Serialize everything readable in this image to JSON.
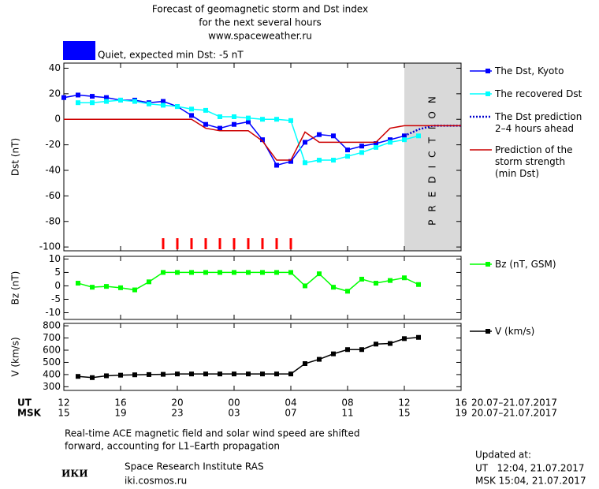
{
  "header": {
    "title_lines": [
      "Forecast of geomagnetic storm and Dst index",
      "for the next several hours",
      "www.spaceweather.ru"
    ],
    "status": {
      "text": "Quiet, expected min Dst: -5 nT",
      "color": "#0000ff"
    }
  },
  "time_axis": {
    "xlim": [
      0,
      28
    ],
    "ut_label": "UT",
    "ut_ticks": [
      {
        "value": 0,
        "label": "12"
      },
      {
        "value": 4,
        "label": "16"
      },
      {
        "value": 8,
        "label": "20"
      },
      {
        "value": 12,
        "label": "00"
      },
      {
        "value": 16,
        "label": "04"
      },
      {
        "value": 20,
        "label": "08"
      },
      {
        "value": 24,
        "label": "12"
      },
      {
        "value": 28,
        "label": "16"
      }
    ],
    "msk_label": "MSK",
    "msk_ticks": [
      {
        "value": 0,
        "label": "15"
      },
      {
        "value": 4,
        "label": "19"
      },
      {
        "value": 8,
        "label": "23"
      },
      {
        "value": 12,
        "label": "03"
      },
      {
        "value": 16,
        "label": "07"
      },
      {
        "value": 20,
        "label": "11"
      },
      {
        "value": 24,
        "label": "15"
      },
      {
        "value": 28,
        "label": "19"
      }
    ],
    "date": "20.07–21.07.2017"
  },
  "chart_data": [
    {
      "type": "line",
      "ylabel": "Dst (nT)",
      "ylim": [
        -103,
        44
      ],
      "yticks": [
        40,
        20,
        0,
        -20,
        -40,
        -60,
        -80,
        -100
      ],
      "x": [
        0,
        1,
        2,
        3,
        4,
        5,
        6,
        7,
        8,
        9,
        10,
        11,
        12,
        13,
        14,
        15,
        16,
        17,
        18,
        19,
        20,
        21,
        22,
        23,
        24,
        25,
        26,
        27,
        28
      ],
      "prediction_zone": {
        "label": "PREDICTION",
        "x": [
          24,
          28
        ],
        "color": "#d9d9d9"
      },
      "alert_x": [
        7,
        8,
        9,
        10,
        11,
        12,
        13,
        14,
        15,
        16
      ],
      "alert_color": "#ff0000",
      "series": [
        {
          "name": "The Dst, Kyoto",
          "color": "#0000ff",
          "marker": "square",
          "line_style": "solid",
          "values": [
            17,
            19,
            18,
            17,
            15,
            15,
            13,
            14,
            10,
            3,
            -4,
            -7,
            -4,
            -2,
            -16,
            -36,
            -33,
            -18,
            -12,
            -13,
            -24,
            -21,
            -19,
            -16,
            -13,
            null,
            null,
            null,
            null
          ]
        },
        {
          "name": "The recovered Dst",
          "color": "#00ffff",
          "marker": "square",
          "line_style": "solid",
          "values": [
            null,
            13,
            13,
            14,
            15,
            14,
            12,
            11,
            10,
            8,
            7,
            2,
            2,
            1,
            0,
            0,
            -1,
            -34,
            -32,
            -32,
            -29,
            -26,
            -22,
            -18,
            -16,
            -13,
            null,
            null,
            null
          ]
        },
        {
          "name": "The Dst prediction\n2–4 hours ahead",
          "color": "#0000cc",
          "marker": "none",
          "line_style": "dotted",
          "values": [
            null,
            null,
            null,
            null,
            null,
            null,
            null,
            null,
            null,
            null,
            null,
            null,
            null,
            null,
            null,
            null,
            null,
            null,
            null,
            null,
            null,
            null,
            null,
            null,
            -13,
            -8,
            -5,
            -5,
            -5
          ]
        },
        {
          "name": "Prediction of the\nstorm strength\n(min Dst)",
          "color": "#cc0000",
          "marker": "none",
          "line_style": "solid",
          "values": [
            0,
            0,
            0,
            0,
            0,
            0,
            0,
            0,
            0,
            0,
            -7,
            -9,
            -9,
            -9,
            -17,
            -32,
            -32,
            -10,
            -18,
            -18,
            -18,
            -18,
            -18,
            -7,
            -5,
            -5,
            -5,
            -5,
            -5
          ]
        }
      ]
    },
    {
      "type": "line",
      "ylabel": "Bz (nT)",
      "ylim": [
        -12.5,
        11
      ],
      "yticks": [
        10,
        5,
        0,
        -5,
        -10
      ],
      "x": [
        1,
        2,
        3,
        4,
        5,
        6,
        7,
        8,
        9,
        10,
        11,
        12,
        13,
        14,
        15,
        16,
        17,
        18,
        19,
        20,
        21,
        22,
        23,
        24,
        25
      ],
      "series": [
        {
          "name": "Bz (nT, GSM)",
          "color": "#00ff00",
          "marker": "square",
          "line_style": "solid",
          "values": [
            1,
            -0.5,
            -0.2,
            -0.7,
            -1.5,
            1.5,
            5,
            5,
            5,
            5,
            5,
            5,
            5,
            5,
            5,
            5,
            0,
            4.5,
            -0.5,
            -2,
            2.5,
            1,
            2,
            3,
            0.5
          ]
        }
      ]
    },
    {
      "type": "line",
      "ylabel": "V (km/s)",
      "ylim": [
        270,
        820
      ],
      "yticks": [
        800,
        700,
        600,
        500,
        400,
        300
      ],
      "x": [
        1,
        2,
        3,
        4,
        5,
        6,
        7,
        8,
        9,
        10,
        11,
        12,
        13,
        14,
        15,
        16,
        17,
        18,
        19,
        20,
        21,
        22,
        23,
        24,
        25
      ],
      "series": [
        {
          "name": "V (km/s)",
          "color": "#000000",
          "marker": "square",
          "line_style": "solid",
          "values": [
            385,
            375,
            390,
            395,
            398,
            400,
            402,
            405,
            405,
            405,
            405,
            405,
            405,
            405,
            405,
            405,
            490,
            525,
            570,
            605,
            605,
            650,
            655,
            695,
            705
          ]
        }
      ]
    }
  ],
  "footer": {
    "note_lines": [
      "Real-time ACE magnetic field and solar wind speed are shifted",
      "forward, accounting for L1–Earth propagation"
    ],
    "logo": "ИКИ",
    "institute": "Space Research Institute RAS",
    "url": "iki.cosmos.ru",
    "updated_label": "Updated at:",
    "updated_ut": "UT   12:04, 21.07.2017",
    "updated_msk": "MSK 15:04, 21.07.2017"
  }
}
